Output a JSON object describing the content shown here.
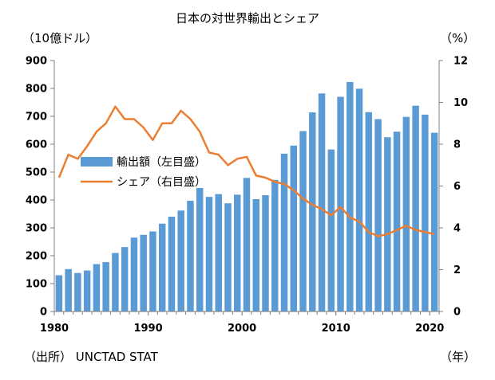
{
  "chart_data": {
    "type": "bar",
    "title": "日本の対世界輸出とシェア",
    "y_left_unit": "（10億ドル）",
    "y_right_unit": "（%）",
    "x_unit": "（年）",
    "source": "（出所） UNCTAD STAT",
    "x": [
      1980,
      1981,
      1982,
      1983,
      1984,
      1985,
      1986,
      1987,
      1988,
      1989,
      1990,
      1991,
      1992,
      1993,
      1994,
      1995,
      1996,
      1997,
      1998,
      1999,
      2000,
      2001,
      2002,
      2003,
      2004,
      2005,
      2006,
      2007,
      2008,
      2009,
      2010,
      2011,
      2012,
      2013,
      2014,
      2015,
      2016,
      2017,
      2018,
      2019,
      2020
    ],
    "x_ticks": [
      "1980",
      "1990",
      "2000",
      "2010",
      "2020"
    ],
    "y_left_ticks": [
      "0",
      "100",
      "200",
      "300",
      "400",
      "500",
      "600",
      "700",
      "800",
      "900"
    ],
    "y_right_ticks": [
      "0",
      "2",
      "4",
      "6",
      "8",
      "10",
      "12"
    ],
    "ylim_left": [
      0,
      900
    ],
    "ylim_right": [
      0,
      12
    ],
    "series": [
      {
        "name": "輸出額（左目盛）",
        "type": "bar",
        "axis": "left",
        "color": "#5b9bd5",
        "values": [
          130,
          152,
          138,
          147,
          170,
          177,
          210,
          231,
          265,
          275,
          287,
          315,
          340,
          362,
          397,
          443,
          411,
          421,
          388,
          419,
          479,
          403,
          417,
          472,
          566,
          595,
          647,
          714,
          782,
          581,
          770,
          823,
          799,
          715,
          690,
          625,
          645,
          698,
          738,
          706,
          641
        ]
      },
      {
        "name": "シェア（右目盛）",
        "type": "line",
        "axis": "right",
        "color": "#ed7d31",
        "values": [
          6.4,
          7.5,
          7.3,
          7.9,
          8.6,
          9.0,
          9.8,
          9.2,
          9.2,
          8.8,
          8.2,
          9.0,
          9.0,
          9.6,
          9.2,
          8.6,
          7.6,
          7.5,
          7.0,
          7.3,
          7.4,
          6.5,
          6.4,
          6.2,
          6.1,
          5.8,
          5.4,
          5.1,
          4.9,
          4.6,
          5.0,
          4.5,
          4.3,
          3.8,
          3.6,
          3.7,
          3.9,
          4.1,
          3.9,
          3.8,
          3.7
        ]
      }
    ],
    "legend_placement": "center-left",
    "grid": false
  }
}
